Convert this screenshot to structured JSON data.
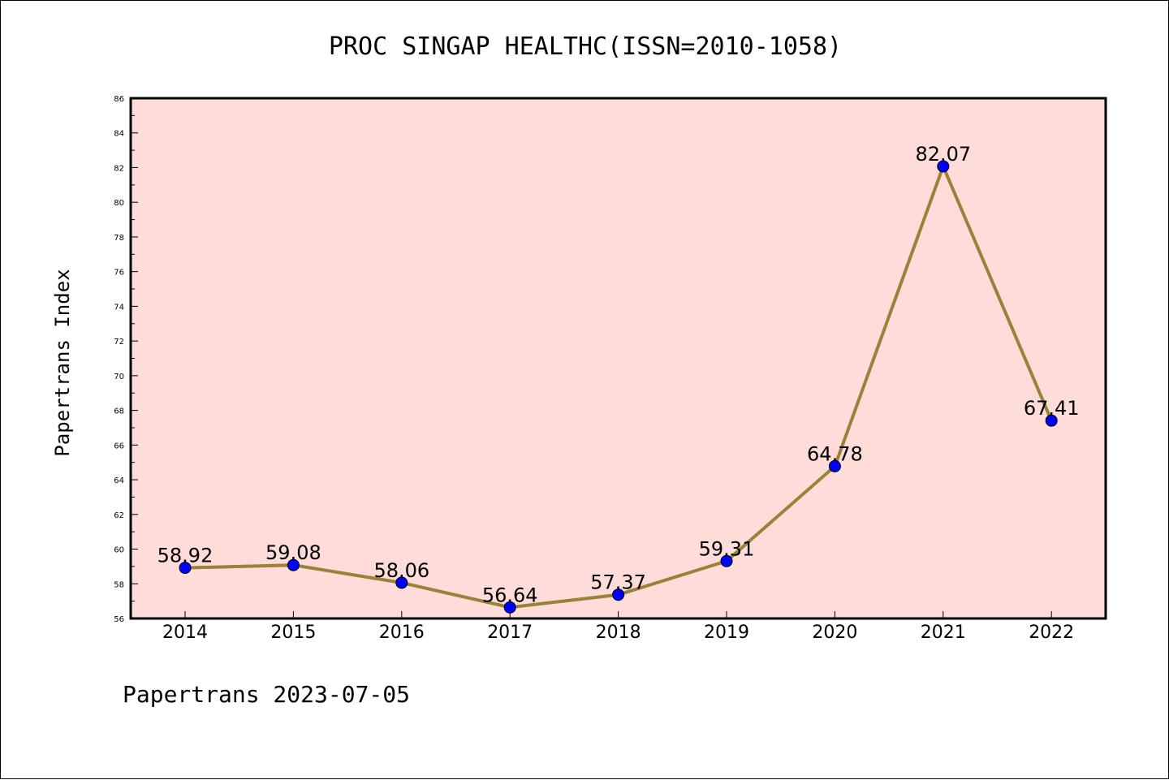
{
  "footer": "Papertrans 2023-07-05",
  "chart_data": {
    "type": "line",
    "title": "PROC SINGAP HEALTHC(ISSN=2010-1058)",
    "xlabel": "",
    "ylabel": "Papertrans Index",
    "categories": [
      "2014",
      "2015",
      "2016",
      "2017",
      "2018",
      "2019",
      "2020",
      "2021",
      "2022"
    ],
    "series": [
      {
        "values": [
          58.92,
          59.08,
          58.06,
          56.64,
          57.37,
          59.31,
          64.78,
          82.07,
          67.41
        ],
        "labels": [
          "58.92",
          "59.08",
          "58.06",
          "56.64",
          "57.37",
          "59.31",
          "64.78",
          "82.07",
          "67.41"
        ]
      }
    ],
    "ylim": [
      56,
      86
    ],
    "yticks": [
      "56",
      "58",
      "60",
      "62",
      "64",
      "66",
      "68",
      "70",
      "72",
      "74",
      "76",
      "78",
      "80",
      "82",
      "84",
      "86"
    ],
    "grid": false,
    "legend": "none",
    "colors": {
      "plot_background": "#fddcd9",
      "line": "#9a8238",
      "marker": "#0000ff",
      "axis": "#000000"
    }
  }
}
